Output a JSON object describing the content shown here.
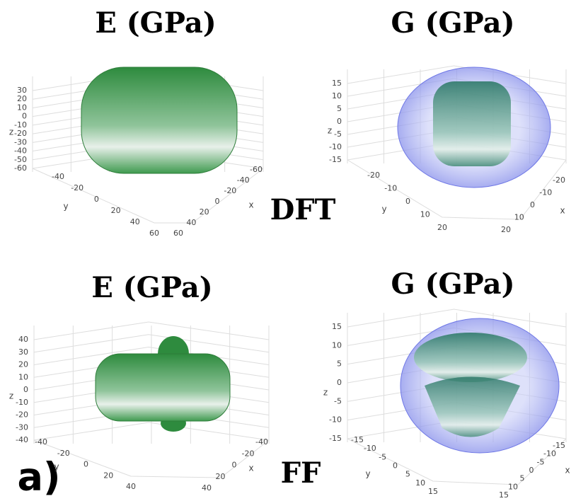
{
  "labels": {
    "dft": "DFT",
    "ff": "FF",
    "panel": "a)"
  },
  "panels": [
    {
      "title": "E (GPa)",
      "z_label": "z",
      "y_label": "y",
      "x_label": "x",
      "z_ticks": [
        "30",
        "20",
        "10",
        "0",
        "-10",
        "-20",
        "-30",
        "-40",
        "-50",
        "-60"
      ],
      "y_ticks": [
        "-40",
        "-20",
        "0",
        "20",
        "40",
        "60"
      ],
      "x_ticks": [
        "-60",
        "-40",
        "-20",
        "0",
        "20",
        "40",
        "60"
      ]
    },
    {
      "title": "G (GPa)",
      "z_label": "z",
      "y_label": "y",
      "x_label": "x",
      "z_ticks": [
        "15",
        "10",
        "5",
        "0",
        "-5",
        "-10",
        "-15"
      ],
      "y_ticks": [
        "-20",
        "-10",
        "0",
        "10",
        "20"
      ],
      "x_ticks": [
        "-20",
        "-10",
        "0",
        "10",
        "20"
      ]
    },
    {
      "title": "E (GPa)",
      "z_label": "z",
      "y_label": "y",
      "x_label": "x",
      "z_ticks": [
        "40",
        "30",
        "20",
        "10",
        "0",
        "-10",
        "-20",
        "-30",
        "-40"
      ],
      "y_ticks": [
        "-40",
        "-20",
        "0",
        "20",
        "40"
      ],
      "x_ticks": [
        "-40",
        "-20",
        "0",
        "20",
        "40"
      ]
    },
    {
      "title": "G (GPa)",
      "z_label": "z",
      "y_label": "y",
      "x_label": "x",
      "z_ticks": [
        "15",
        "10",
        "5",
        "0",
        "-5",
        "-10",
        "-15"
      ],
      "y_ticks": [
        "-15",
        "-10",
        "-5",
        "0",
        "5",
        "10",
        "15"
      ],
      "x_ticks": [
        "-15",
        "-10",
        "-5",
        "0",
        "5",
        "10",
        "15"
      ]
    }
  ]
}
